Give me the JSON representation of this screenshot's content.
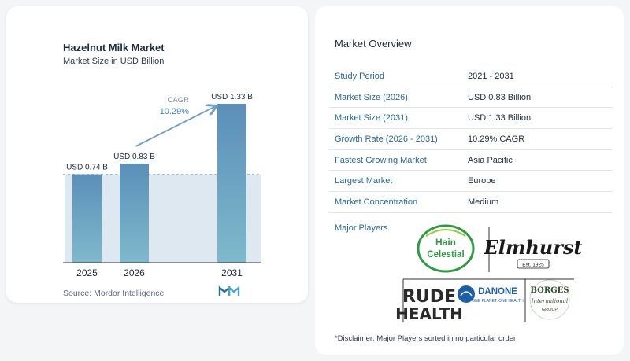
{
  "left": {
    "title": "Hazelnut Milk Market",
    "subtitle": "Market Size in USD Billion",
    "source": "Source: Mordor Intelligence",
    "cagr_label": "CAGR",
    "cagr_value": "10.29%"
  },
  "chart_data": {
    "type": "bar",
    "title": "Hazelnut Milk Market",
    "categories": [
      "2025",
      "2026",
      "2031"
    ],
    "values": [
      0.74,
      0.83,
      1.33
    ],
    "data_labels": [
      "USD 0.74 B",
      "USD 0.83 B",
      "USD 1.33 B"
    ],
    "ylabel": "Market Size in USD Billion",
    "ylim": [
      0,
      1.33
    ],
    "grid": false,
    "colors": {
      "bar_top": "#5b8fb8",
      "bar_bottom": "#7fb9cc",
      "band": "#dde8f0",
      "arrow": "#6a9cc4",
      "cagr_label": "#7a8896",
      "cagr_value": "#3a86c8"
    }
  },
  "overview": {
    "title": "Market Overview",
    "rows": [
      {
        "label": "Study Period",
        "value": "2021 - 2031"
      },
      {
        "label": "Market Size (2026)",
        "value": "USD 0.83 Billion"
      },
      {
        "label": "Market Size (2031)",
        "value": "USD 1.33 Billion"
      },
      {
        "label": "Growth Rate (2026 - 2031)",
        "value": "10.29% CAGR"
      },
      {
        "label": "Fastest Growing Market",
        "value": "Asia Pacific"
      },
      {
        "label": "Largest Market",
        "value": "Europe"
      },
      {
        "label": "Market Concentration",
        "value": "Medium"
      }
    ],
    "major_players_label": "Major Players",
    "players": {
      "hain_1": "Hain",
      "hain_2": "Celestial",
      "elmhurst": "Elmhurst",
      "elmhurst_est": "Est. 1925",
      "rude_1": "RUDE",
      "rude_2": "HEALTH",
      "danone": "DANONE",
      "danone_tag": "ONE PLANET. ONE HEALTH",
      "borges_1": "BORGES",
      "borges_2": "International",
      "borges_3": "GROUP"
    },
    "disclaimer": "*Disclaimer: Major Players sorted in no particular order"
  }
}
